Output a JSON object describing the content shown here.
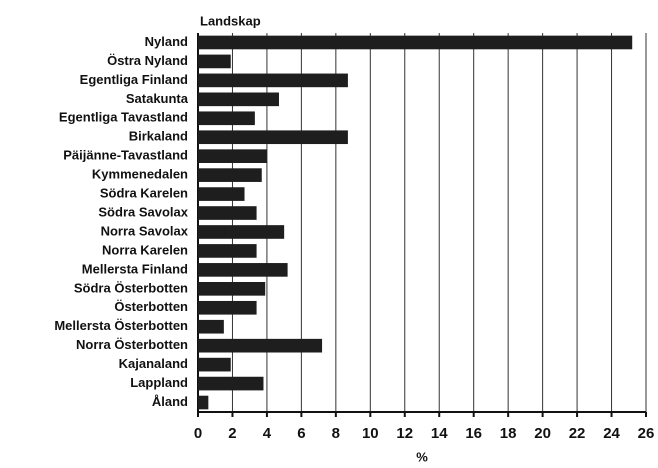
{
  "chart_data": {
    "type": "bar",
    "orientation": "horizontal",
    "category_axis_label": "Landskap",
    "x_axis_label": "%",
    "categories": [
      "Nyland",
      "Östra Nyland",
      "Egentliga Finland",
      "Satakunta",
      "Egentliga Tavastland",
      "Birkaland",
      "Päijänne-Tavastland",
      "Kymmenedalen",
      "Södra Karelen",
      "Södra Savolax",
      "Norra Savolax",
      "Norra Karelen",
      "Mellersta Finland",
      "Södra Österbotten",
      "Österbotten",
      "Mellersta Österbotten",
      "Norra Österbotten",
      "Kajanaland",
      "Lappland",
      "Åland"
    ],
    "values": [
      25.2,
      1.9,
      8.7,
      4.7,
      3.3,
      8.7,
      4.0,
      3.7,
      2.7,
      3.4,
      5.0,
      3.4,
      5.2,
      3.9,
      3.4,
      1.5,
      7.2,
      1.9,
      3.8,
      0.6
    ],
    "color": "#1e1e1e",
    "xlim": [
      0,
      26
    ],
    "xticks": [
      0,
      2,
      4,
      6,
      8,
      10,
      12,
      14,
      16,
      18,
      20,
      22,
      24,
      26
    ],
    "grid": true
  }
}
